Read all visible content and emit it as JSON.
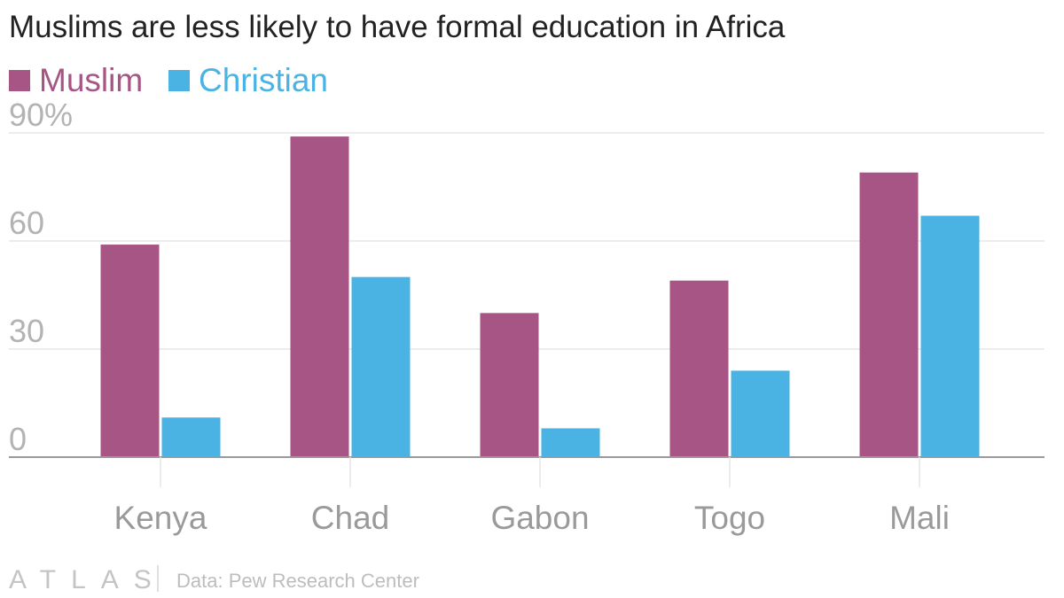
{
  "colors": {
    "muslim": "#a65584",
    "christian": "#4bb3e3",
    "grid": "#e6e6e6",
    "baseline": "#9a9a9a"
  },
  "chart_data": {
    "type": "bar",
    "title": "Muslims are less likely to have formal education in Africa",
    "categories": [
      "Kenya",
      "Chad",
      "Gabon",
      "Togo",
      "Mali"
    ],
    "series": [
      {
        "name": "Muslim",
        "values": [
          59,
          89,
          40,
          49,
          79
        ]
      },
      {
        "name": "Christian",
        "values": [
          11,
          50,
          8,
          24,
          67
        ]
      }
    ],
    "ylim": [
      0,
      90
    ],
    "yticks": [
      0,
      30,
      60,
      90
    ],
    "ytick_labels": [
      "0",
      "30",
      "60",
      "90%"
    ],
    "legend": "top-left",
    "grid": true
  },
  "footer": {
    "brand": "ATLAS",
    "source": "Data: Pew Research Center"
  }
}
